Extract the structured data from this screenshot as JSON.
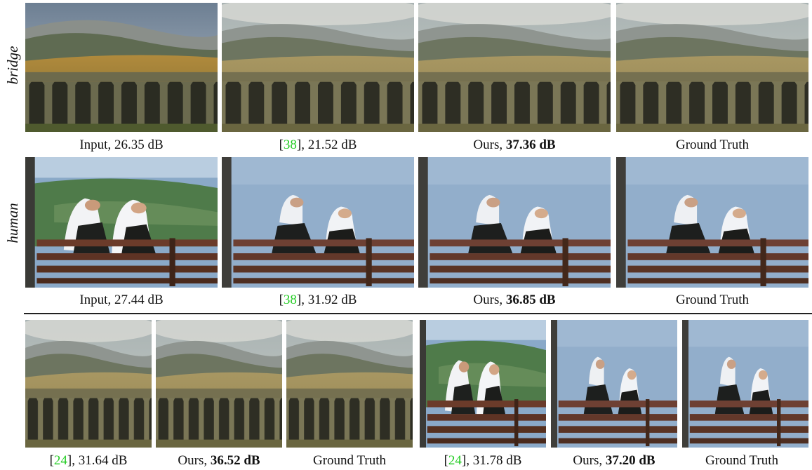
{
  "row_labels": {
    "bridge": "bridge",
    "human": "human"
  },
  "captions": {
    "r1": [
      {
        "pre": "Input, 26.35 dB",
        "ref": "",
        "post": "",
        "bold": ""
      },
      {
        "pre": "[",
        "ref": "38",
        "post": "], 21.52 dB",
        "bold": ""
      },
      {
        "pre": "Ours, ",
        "ref": "",
        "post": "",
        "bold": "37.36 dB"
      },
      {
        "pre": "Ground Truth",
        "ref": "",
        "post": "",
        "bold": ""
      }
    ],
    "r2": [
      {
        "pre": "Input, 27.44 dB",
        "ref": "",
        "post": "",
        "bold": ""
      },
      {
        "pre": "[",
        "ref": "38",
        "post": "], 31.92 dB",
        "bold": ""
      },
      {
        "pre": "Ours, ",
        "ref": "",
        "post": "",
        "bold": "36.85 dB"
      },
      {
        "pre": "Ground Truth",
        "ref": "",
        "post": "",
        "bold": ""
      }
    ],
    "r3": [
      {
        "pre": "[",
        "ref": "24",
        "post": "], 31.64 dB",
        "bold": ""
      },
      {
        "pre": "Ours, ",
        "ref": "",
        "post": "",
        "bold": "36.52 dB"
      },
      {
        "pre": "Ground Truth",
        "ref": "",
        "post": "",
        "bold": ""
      },
      {
        "pre": "[",
        "ref": "24",
        "post": "], 31.78 dB",
        "bold": ""
      },
      {
        "pre": "Ours, ",
        "ref": "",
        "post": "",
        "bold": "37.20 dB"
      },
      {
        "pre": "Ground Truth",
        "ref": "",
        "post": "",
        "bold": ""
      }
    ]
  },
  "images": {
    "bridge_input": "bridge-landscape-photo",
    "bridge_result": "bridge-landscape-photo",
    "human_input": "nuns-on-bench-photo",
    "human_result": "nuns-on-bench-photo"
  }
}
